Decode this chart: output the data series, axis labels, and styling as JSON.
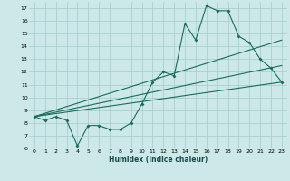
{
  "xlabel": "Humidex (Indice chaleur)",
  "background_color": "#cce8e8",
  "grid_color": "#aacfcf",
  "line_color": "#1a6b5a",
  "xlim": [
    -0.5,
    23.5
  ],
  "ylim": [
    6,
    17.5
  ],
  "xticks": [
    0,
    1,
    2,
    3,
    4,
    5,
    6,
    7,
    8,
    9,
    10,
    11,
    12,
    13,
    14,
    15,
    16,
    17,
    18,
    19,
    20,
    21,
    22,
    23
  ],
  "yticks": [
    6,
    7,
    8,
    9,
    10,
    11,
    12,
    13,
    14,
    15,
    16,
    17
  ],
  "series1_x": [
    0,
    1,
    2,
    3,
    4,
    5,
    6,
    7,
    8,
    9,
    10,
    11,
    12,
    13,
    14,
    15,
    16,
    17,
    18,
    19,
    20,
    21,
    22,
    23
  ],
  "series1_y": [
    8.5,
    8.2,
    8.5,
    8.2,
    6.2,
    7.8,
    7.8,
    7.5,
    7.5,
    8.0,
    9.5,
    11.2,
    12.0,
    11.7,
    15.8,
    14.5,
    17.2,
    16.8,
    16.8,
    14.8,
    14.3,
    13.0,
    12.3,
    11.2
  ],
  "series2_x": [
    0,
    23
  ],
  "series2_y": [
    8.5,
    14.5
  ],
  "series3_x": [
    0,
    23
  ],
  "series3_y": [
    8.5,
    12.5
  ],
  "series4_x": [
    0,
    23
  ],
  "series4_y": [
    8.5,
    11.2
  ]
}
